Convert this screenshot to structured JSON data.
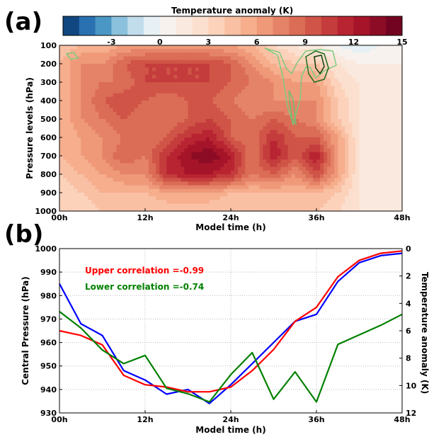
{
  "chart_data": [
    {
      "panel": "(a)",
      "type": "heatmap",
      "colorbar_title": "Temperature anomaly (K)",
      "colorbar_ticks": [
        "-3",
        "0",
        "3",
        "6",
        "9",
        "12",
        "15"
      ],
      "colorbar_range": [
        -6,
        15
      ],
      "colorbar_levels": 21,
      "xlabel": "Model time (h)",
      "ylabel": "Pressure levels (hPa)",
      "x_ticks": [
        "00h",
        "12h",
        "24h",
        "36h",
        "48h"
      ],
      "x_range": [
        0,
        48
      ],
      "y_ticks": [
        "100",
        "200",
        "300",
        "400",
        "500",
        "600",
        "700",
        "800",
        "900",
        "1000"
      ],
      "y_range": [
        1000,
        100
      ],
      "y_inverted": true,
      "x": [
        0,
        3,
        6,
        9,
        12,
        15,
        18,
        21,
        24,
        27,
        30,
        33,
        36,
        39,
        42,
        45,
        48
      ],
      "y": [
        100,
        200,
        300,
        400,
        500,
        600,
        700,
        800,
        900,
        1000
      ],
      "z": [
        [
          4,
          5,
          5,
          6,
          6,
          6,
          6,
          6,
          6,
          5,
          3,
          2,
          1,
          0,
          -1,
          0,
          0
        ],
        [
          5,
          7,
          7,
          9,
          10,
          10,
          10,
          10,
          9,
          7,
          5,
          4,
          4,
          2,
          1,
          1,
          1
        ],
        [
          5,
          7,
          8,
          8,
          10,
          10,
          10,
          10,
          9,
          8,
          7,
          6,
          6,
          3,
          2,
          1,
          1
        ],
        [
          5,
          7,
          9,
          10,
          9,
          8,
          9,
          9,
          8,
          7,
          7,
          7,
          7,
          4,
          2,
          1,
          1
        ],
        [
          5,
          7,
          8,
          9,
          8,
          8,
          9,
          10,
          9,
          8,
          9,
          8,
          7,
          4,
          2,
          1,
          1
        ],
        [
          5,
          6,
          7,
          8,
          8,
          9,
          11,
          12,
          9,
          8,
          11,
          9,
          9,
          6,
          2,
          1,
          1
        ],
        [
          5,
          6,
          7,
          9,
          8,
          11,
          13,
          14,
          12,
          8,
          12,
          9,
          12,
          6,
          2,
          1,
          1
        ],
        [
          4,
          5,
          6,
          7,
          7,
          11,
          12,
          12,
          11,
          8,
          9,
          7,
          10,
          6,
          2,
          1,
          1
        ],
        [
          3,
          4,
          5,
          5,
          5,
          6,
          6,
          6,
          5,
          5,
          5,
          5,
          5,
          4,
          2,
          1,
          1
        ],
        [
          3,
          3,
          4,
          4,
          4,
          4,
          4,
          4,
          4,
          4,
          4,
          4,
          4,
          3,
          2,
          1,
          1
        ]
      ]
    },
    {
      "panel": "(b)",
      "type": "line",
      "xlabel": "Model time (h)",
      "ylabel": "Central Pressure (hPa)",
      "ylabel_right": "Temperature anomaly (K)",
      "x_ticks": [
        "00h",
        "12h",
        "24h",
        "36h",
        "48h"
      ],
      "x_range": [
        0,
        48
      ],
      "ylim": [
        930,
        1000
      ],
      "y_ticks": [
        "930",
        "940",
        "950",
        "960",
        "970",
        "980",
        "990",
        "1000"
      ],
      "ylim_right": [
        12,
        0
      ],
      "y_ticks_right": [
        "0",
        "2",
        "4",
        "6",
        "8",
        "10",
        "12"
      ],
      "grid": true,
      "annotations": [
        {
          "text": "Upper correlation =-0.99",
          "color": "#ff0000"
        },
        {
          "text": "Lower correlation =-0.74",
          "color": "#008000"
        }
      ],
      "series": [
        {
          "axis": "left",
          "color": "#0000ff",
          "x": [
            0,
            3,
            6,
            9,
            12,
            15,
            18,
            21,
            24,
            27,
            30,
            33,
            36,
            39,
            42,
            45,
            48
          ],
          "values": [
            985,
            968,
            963,
            948,
            944,
            938,
            940,
            934,
            942,
            951,
            960,
            969,
            972,
            986,
            994,
            997,
            998
          ]
        },
        {
          "axis": "left",
          "color": "#ff0000",
          "x": [
            0,
            3,
            6,
            9,
            12,
            15,
            18,
            21,
            24,
            27,
            30,
            33,
            36,
            39,
            42,
            45,
            48
          ],
          "values": [
            965,
            963,
            959,
            946,
            942,
            941,
            939,
            939,
            941,
            948,
            957,
            969,
            975,
            988,
            995,
            998,
            999
          ]
        },
        {
          "axis": "right",
          "color": "#008000",
          "x": [
            0,
            3,
            6,
            9,
            12,
            15,
            18,
            21,
            24,
            27,
            30,
            33,
            36,
            39,
            42,
            45,
            48
          ],
          "values": [
            4.6,
            5.8,
            7.4,
            8.4,
            7.8,
            10.2,
            10.6,
            11.2,
            9.2,
            7.6,
            11.0,
            9.0,
            11.2,
            7.0,
            6.3,
            5.6,
            4.8
          ]
        }
      ]
    }
  ],
  "panel_labels": {
    "a": "(a)",
    "b": "(b)"
  }
}
